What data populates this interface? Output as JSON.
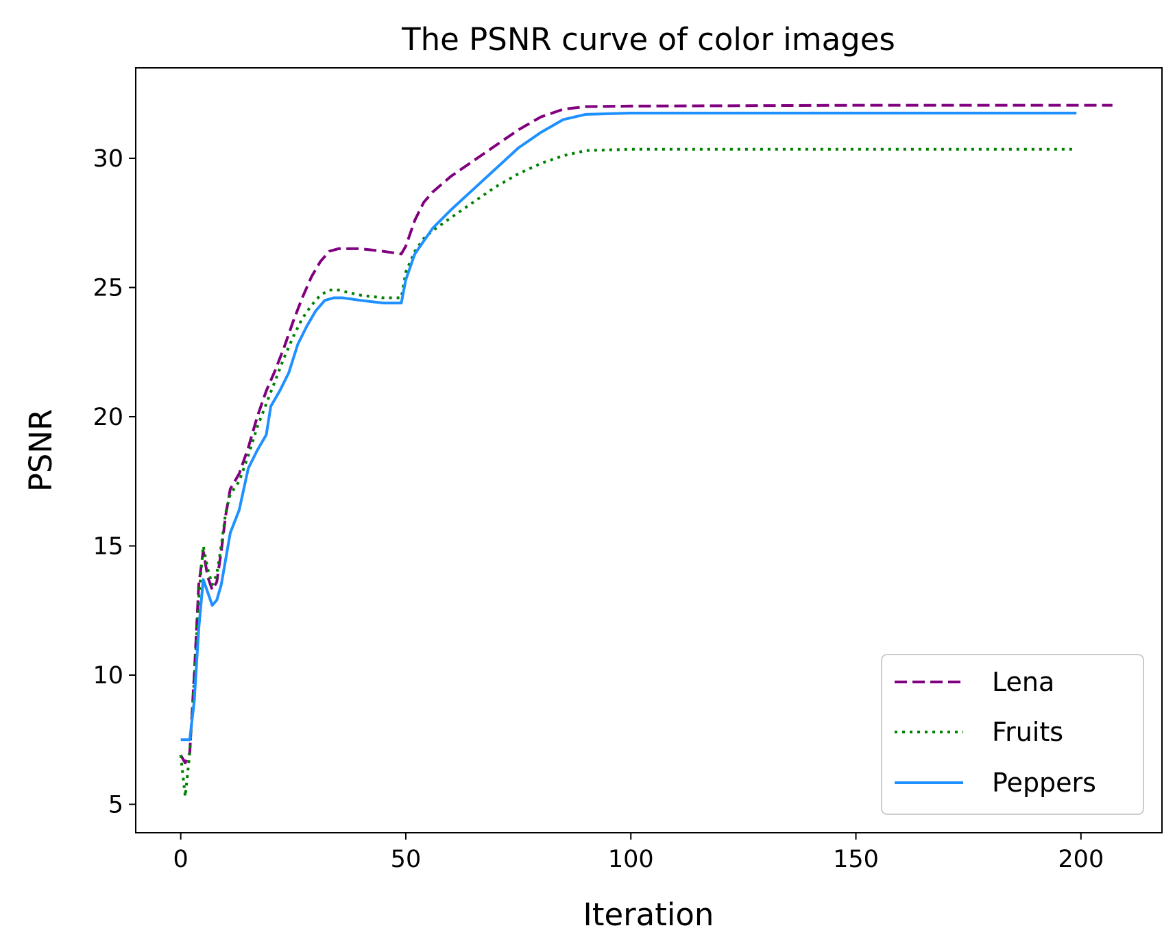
{
  "chart_data": {
    "type": "line",
    "title": "The PSNR curve of color images",
    "xlabel": "Iteration",
    "ylabel": "PSNR",
    "xlim": [
      -10,
      218
    ],
    "ylim": [
      3.9,
      33.5
    ],
    "xticks": [
      0,
      50,
      100,
      150,
      200
    ],
    "yticks": [
      5,
      10,
      15,
      20,
      25,
      30
    ],
    "xtick_labels": [
      "0",
      "50",
      "100",
      "150",
      "200"
    ],
    "ytick_labels": [
      "5",
      "10",
      "15",
      "20",
      "25",
      "30"
    ],
    "grid": false,
    "legend_position": "lower right",
    "series": [
      {
        "name": "Lena",
        "color": "#800080",
        "style": "dashed",
        "points": [
          [
            0,
            6.9
          ],
          [
            1,
            6.6
          ],
          [
            2,
            7.0
          ],
          [
            3,
            10.0
          ],
          [
            4,
            13.5
          ],
          [
            5,
            14.8
          ],
          [
            6,
            13.8
          ],
          [
            7,
            13.3
          ],
          [
            8,
            13.6
          ],
          [
            9,
            14.8
          ],
          [
            10,
            16.2
          ],
          [
            11,
            17.2
          ],
          [
            13,
            17.8
          ],
          [
            15,
            18.8
          ],
          [
            17,
            20.0
          ],
          [
            19,
            21.0
          ],
          [
            21,
            21.8
          ],
          [
            23,
            22.7
          ],
          [
            25,
            23.7
          ],
          [
            27,
            24.6
          ],
          [
            29,
            25.4
          ],
          [
            31,
            26.0
          ],
          [
            33,
            26.4
          ],
          [
            35,
            26.5
          ],
          [
            40,
            26.5
          ],
          [
            45,
            26.4
          ],
          [
            49,
            26.3
          ],
          [
            50,
            26.6
          ],
          [
            52,
            27.6
          ],
          [
            54,
            28.3
          ],
          [
            56,
            28.7
          ],
          [
            60,
            29.3
          ],
          [
            65,
            29.9
          ],
          [
            70,
            30.5
          ],
          [
            75,
            31.1
          ],
          [
            80,
            31.6
          ],
          [
            85,
            31.9
          ],
          [
            90,
            32.0
          ],
          [
            100,
            32.02
          ],
          [
            150,
            32.05
          ],
          [
            200,
            32.05
          ],
          [
            207,
            32.05
          ]
        ]
      },
      {
        "name": "Fruits",
        "color": "#008000",
        "style": "dotted",
        "points": [
          [
            0,
            6.9
          ],
          [
            1,
            5.3
          ],
          [
            2,
            7.0
          ],
          [
            3,
            9.8
          ],
          [
            4,
            13.0
          ],
          [
            5,
            15.0
          ],
          [
            6,
            14.1
          ],
          [
            7,
            13.5
          ],
          [
            8,
            13.9
          ],
          [
            9,
            15.0
          ],
          [
            10,
            16.3
          ],
          [
            11,
            17.0
          ],
          [
            13,
            17.5
          ],
          [
            15,
            18.5
          ],
          [
            17,
            19.6
          ],
          [
            19,
            20.5
          ],
          [
            21,
            21.4
          ],
          [
            23,
            22.3
          ],
          [
            25,
            23.1
          ],
          [
            27,
            23.8
          ],
          [
            29,
            24.3
          ],
          [
            31,
            24.7
          ],
          [
            33,
            24.9
          ],
          [
            35,
            24.9
          ],
          [
            40,
            24.7
          ],
          [
            45,
            24.6
          ],
          [
            49,
            24.6
          ],
          [
            50,
            25.6
          ],
          [
            52,
            26.4
          ],
          [
            54,
            26.9
          ],
          [
            56,
            27.2
          ],
          [
            60,
            27.7
          ],
          [
            65,
            28.3
          ],
          [
            70,
            28.9
          ],
          [
            75,
            29.4
          ],
          [
            80,
            29.8
          ],
          [
            85,
            30.1
          ],
          [
            90,
            30.3
          ],
          [
            100,
            30.35
          ],
          [
            150,
            30.35
          ],
          [
            199,
            30.35
          ]
        ]
      },
      {
        "name": "Peppers",
        "color": "#1e90ff",
        "style": "solid",
        "points": [
          [
            0,
            7.5
          ],
          [
            2,
            7.5
          ],
          [
            3,
            9.0
          ],
          [
            4,
            11.8
          ],
          [
            5,
            13.7
          ],
          [
            6,
            13.2
          ],
          [
            7,
            12.7
          ],
          [
            8,
            12.9
          ],
          [
            9,
            13.5
          ],
          [
            10,
            14.5
          ],
          [
            11,
            15.5
          ],
          [
            13,
            16.4
          ],
          [
            15,
            18.0
          ],
          [
            17,
            18.7
          ],
          [
            19,
            19.3
          ],
          [
            20,
            20.4
          ],
          [
            22,
            21.0
          ],
          [
            24,
            21.7
          ],
          [
            26,
            22.8
          ],
          [
            28,
            23.5
          ],
          [
            30,
            24.1
          ],
          [
            32,
            24.5
          ],
          [
            34,
            24.6
          ],
          [
            36,
            24.6
          ],
          [
            40,
            24.5
          ],
          [
            45,
            24.4
          ],
          [
            49,
            24.4
          ],
          [
            50,
            25.3
          ],
          [
            52,
            26.3
          ],
          [
            54,
            26.8
          ],
          [
            56,
            27.3
          ],
          [
            60,
            28.0
          ],
          [
            65,
            28.8
          ],
          [
            70,
            29.6
          ],
          [
            75,
            30.4
          ],
          [
            80,
            31.0
          ],
          [
            85,
            31.5
          ],
          [
            90,
            31.7
          ],
          [
            100,
            31.75
          ],
          [
            150,
            31.75
          ],
          [
            199,
            31.75
          ]
        ]
      }
    ]
  }
}
